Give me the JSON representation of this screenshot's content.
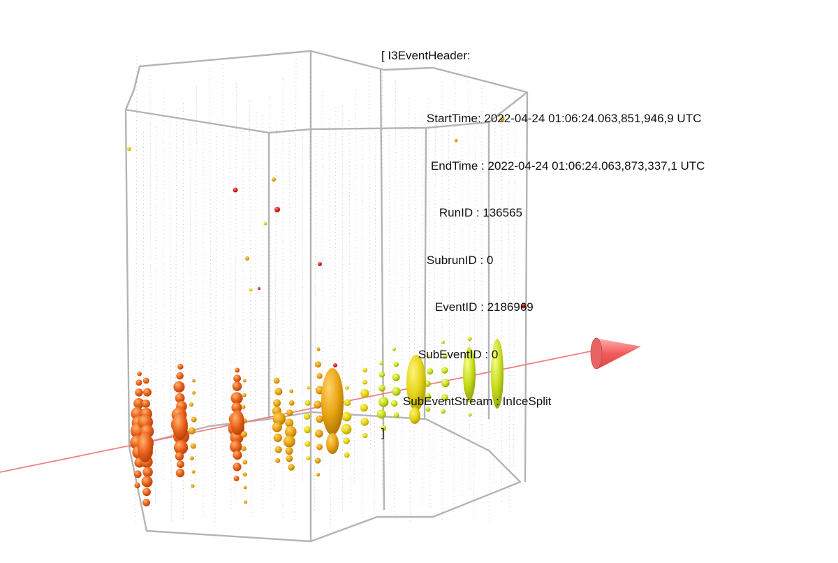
{
  "event_header": {
    "open": "[ I3EventHeader:",
    "close": "]",
    "fields": [
      {
        "label": "StartTime",
        "value": "2022-04-24 01:06:24.063,851,946,9 UTC"
      },
      {
        "label": "EndTime",
        "value": "2022-04-24 01:06:24.063,873,337,1 UTC"
      },
      {
        "label": "RunID",
        "value": "136565"
      },
      {
        "label": "SubrunID",
        "value": "0"
      },
      {
        "label": "EventID",
        "value": "2186969"
      },
      {
        "label": "SubEventID",
        "value": "0"
      },
      {
        "label": "SubEventStream",
        "value": "InIceSplit"
      }
    ]
  },
  "colors": {
    "background": "#ffffff",
    "detector_outline": "#b4b4b4",
    "string": "#999999",
    "track": "#f08080",
    "track_arrow": "#f25c5c",
    "hit_early": "#e8601c",
    "hit_mid": "#e8a412",
    "hit_late": "#c8dc1e",
    "hit_isolated": "#d82020"
  },
  "icons": {
    "track_direction": "cone-arrow-icon",
    "hit": "sphere-icon"
  }
}
